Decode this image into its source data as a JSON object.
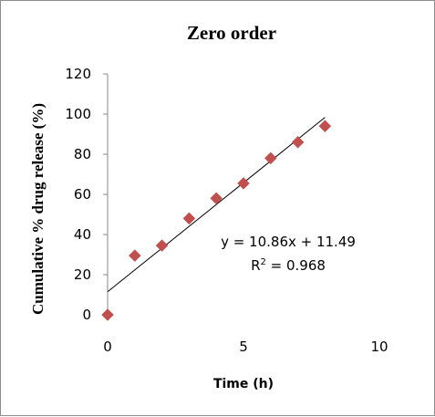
{
  "chart_data": {
    "type": "scatter",
    "title": "Zero order",
    "xlabel": "Time (h)",
    "ylabel": "Cumulative % drug release (%)",
    "xlim": [
      0,
      10
    ],
    "ylim": [
      0,
      120
    ],
    "xticks": [
      0,
      5,
      10
    ],
    "yticks": [
      0,
      20,
      40,
      60,
      80,
      100,
      120
    ],
    "grid": false,
    "legend": "none",
    "series": [
      {
        "marker": "diamond",
        "color": "#c0504d",
        "x": [
          0,
          1,
          2,
          3,
          4,
          5,
          6,
          7,
          8
        ],
        "y": [
          0,
          29.5,
          34.5,
          48,
          58,
          65.5,
          78,
          86,
          94
        ]
      }
    ],
    "trendline": {
      "slope": 10.86,
      "intercept": 11.49,
      "x_range": [
        0,
        8
      ],
      "color": "#000000"
    },
    "annotations": {
      "equation": "y = 10.86x + 11.49",
      "r2_prefix": "R",
      "r2_sup": "2",
      "r2_suffix": " = 0.968"
    }
  }
}
